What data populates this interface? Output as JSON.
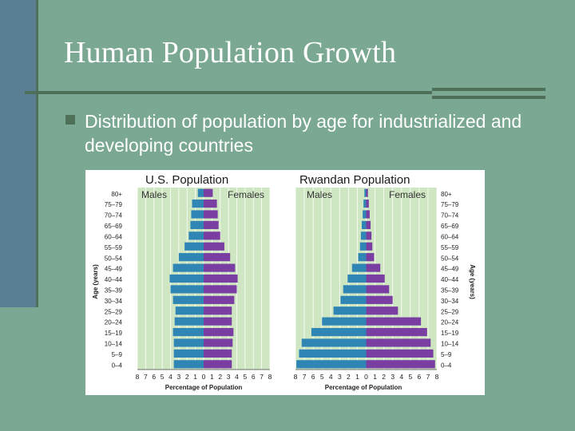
{
  "slide": {
    "title": "Human Population Growth",
    "bullet": "Distribution of population by age for industrialized and developing countries"
  },
  "colors": {
    "background": "#7aa892",
    "males": "#2f86b4",
    "females": "#7a3ea3",
    "plot_background": "#cfe6c2"
  },
  "chart_data": [
    {
      "type": "bar",
      "orientation": "population-pyramid",
      "title": "U.S. Population",
      "xlabel": "Percentage of Population",
      "ylabel": "Age (years)",
      "x_ticks": [
        "8",
        "7",
        "6",
        "5",
        "4",
        "3",
        "2",
        "1",
        "0",
        "1",
        "2",
        "3",
        "4",
        "5",
        "6",
        "7",
        "8"
      ],
      "xlim": [
        -8,
        8
      ],
      "grid": true,
      "categories": [
        "0–4",
        "5–9",
        "10–14",
        "15–19",
        "20–24",
        "25–29",
        "30–34",
        "35–39",
        "40–44",
        "45–49",
        "50–54",
        "55–59",
        "60–64",
        "65–69",
        "70–74",
        "75–79",
        "80+"
      ],
      "series": [
        {
          "name": "Males",
          "values": [
            3.6,
            3.6,
            3.6,
            3.7,
            3.5,
            3.4,
            3.7,
            4.0,
            4.1,
            3.7,
            3.0,
            2.3,
            1.8,
            1.6,
            1.5,
            1.4,
            0.7
          ]
        },
        {
          "name": "Females",
          "values": [
            3.4,
            3.4,
            3.5,
            3.6,
            3.4,
            3.4,
            3.7,
            4.0,
            4.1,
            3.8,
            3.2,
            2.5,
            2.0,
            1.8,
            1.7,
            1.6,
            1.1
          ]
        }
      ]
    },
    {
      "type": "bar",
      "orientation": "population-pyramid",
      "title": "Rwandan Population",
      "xlabel": "Percentage of Population",
      "ylabel": "Age (years)",
      "x_ticks": [
        "8",
        "7",
        "6",
        "5",
        "4",
        "3",
        "2",
        "1",
        "0",
        "1",
        "2",
        "3",
        "4",
        "5",
        "6",
        "7",
        "8"
      ],
      "xlim": [
        -8,
        8
      ],
      "grid": true,
      "categories": [
        "0–4",
        "5–9",
        "10–14",
        "15–19",
        "20–24",
        "25–29",
        "30–34",
        "35–39",
        "40–44",
        "45–49",
        "50–54",
        "55–59",
        "60–64",
        "65–69",
        "70–74",
        "75–79",
        "80+"
      ],
      "series": [
        {
          "name": "Males",
          "values": [
            7.9,
            7.6,
            7.3,
            6.2,
            5.0,
            3.7,
            2.9,
            2.6,
            2.1,
            1.6,
            0.9,
            0.7,
            0.6,
            0.5,
            0.4,
            0.3,
            0.2
          ]
        },
        {
          "name": "Females",
          "values": [
            7.8,
            7.6,
            7.3,
            6.9,
            6.2,
            3.6,
            3.0,
            2.6,
            2.1,
            1.6,
            0.9,
            0.7,
            0.6,
            0.5,
            0.4,
            0.3,
            0.2
          ]
        }
      ]
    }
  ]
}
